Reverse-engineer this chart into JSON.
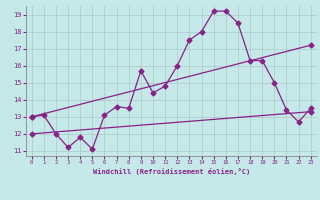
{
  "xlabel": "Windchill (Refroidissement éolien,°C)",
  "xlim": [
    -0.5,
    23.5
  ],
  "ylim": [
    10.7,
    19.5
  ],
  "yticks": [
    11,
    12,
    13,
    14,
    15,
    16,
    17,
    18,
    19
  ],
  "xticks": [
    0,
    1,
    2,
    3,
    4,
    5,
    6,
    7,
    8,
    9,
    10,
    11,
    12,
    13,
    14,
    15,
    16,
    17,
    18,
    19,
    20,
    21,
    22,
    23
  ],
  "bg_color": "#c5e8e8",
  "grid_color": "#b0c8c8",
  "line_color": "#882288",
  "trend1_x": [
    0,
    23
  ],
  "trend1_y": [
    13.0,
    17.2
  ],
  "trend2_x": [
    0,
    23
  ],
  "trend2_y": [
    12.0,
    13.3
  ],
  "data_x": [
    0,
    1,
    2,
    3,
    4,
    5,
    6,
    7,
    8,
    9,
    10,
    11,
    12,
    13,
    14,
    15,
    16,
    17,
    18,
    19,
    20,
    21,
    22,
    23
  ],
  "data_y": [
    13.0,
    13.1,
    12.0,
    11.2,
    11.8,
    11.1,
    13.1,
    13.6,
    13.5,
    15.7,
    14.4,
    14.8,
    16.0,
    17.5,
    18.0,
    19.2,
    19.2,
    18.5,
    16.3,
    16.3,
    15.0,
    13.4,
    12.7,
    13.5
  ]
}
